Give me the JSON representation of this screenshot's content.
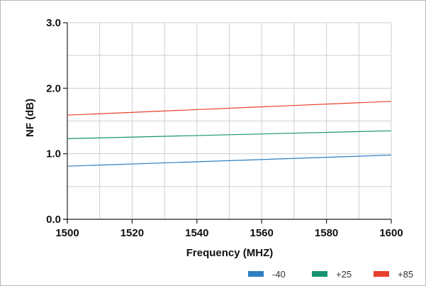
{
  "chart_data": {
    "type": "line",
    "xlabel": "Frequency (MHZ)",
    "ylabel": "NF (dB)",
    "xlim": [
      1500,
      1600
    ],
    "ylim": [
      0.0,
      3.0
    ],
    "x_ticks": [
      "1500",
      "1520",
      "1540",
      "1560",
      "1580",
      "1600"
    ],
    "y_ticks": [
      "0.0",
      "1.0",
      "2.0",
      "3.0"
    ],
    "grid": true,
    "legend_position": "bottom-right",
    "series": [
      {
        "name": "-40",
        "color": "#2d7fc1",
        "x": [
          1500,
          1600
        ],
        "y": [
          0.81,
          0.98
        ]
      },
      {
        "name": "+25",
        "color": "#16946f",
        "x": [
          1500,
          1600
        ],
        "y": [
          1.23,
          1.35
        ]
      },
      {
        "name": "+85",
        "color": "#e8402e",
        "x": [
          1500,
          1600
        ],
        "y": [
          1.59,
          1.8
        ]
      }
    ]
  }
}
